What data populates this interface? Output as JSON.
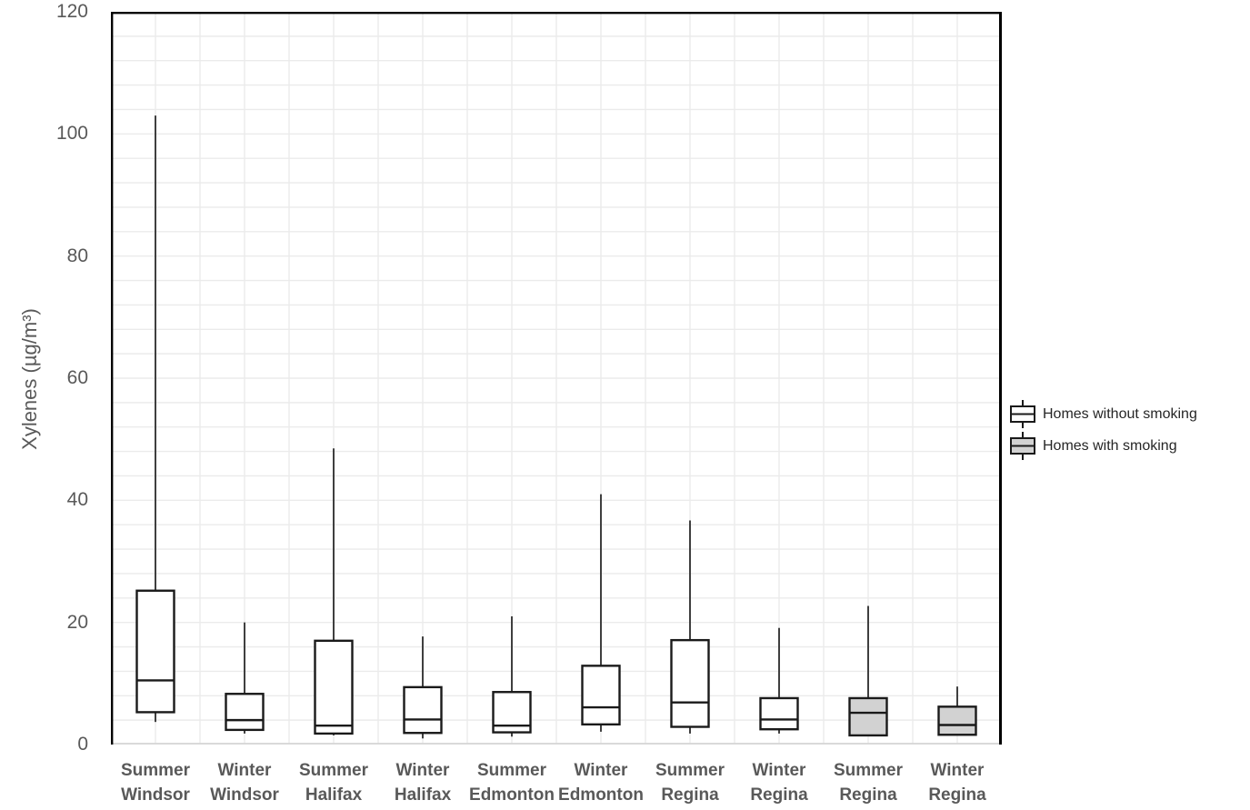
{
  "colors": {
    "background": "#ffffff",
    "no_smoking_fill": "#ffffff",
    "smoking_fill": "#d2d2d2",
    "box_border": "#1a1a1a",
    "whisker": "#3f3f3f",
    "gridline": "#ebebeb",
    "frame": "#000000",
    "baseline": "#d9d9d9",
    "axis_label_text": "#595959",
    "legend_text": "#262626"
  },
  "legend": {
    "items": [
      {
        "label": "Homes without smoking",
        "group": "without"
      },
      {
        "label": "Homes with smoking",
        "group": "with"
      }
    ]
  },
  "chart_data": {
    "type": "boxplot",
    "title": "",
    "xlabel": "",
    "ylabel": "Xylenes (µg/m³)",
    "ylim": [
      0,
      120
    ],
    "y_ticks": [
      0,
      20,
      40,
      60,
      80,
      100,
      120
    ],
    "y_minor_grid_step": 4,
    "x_minor_grid_per_category": 2,
    "grid": true,
    "legend_position": "right",
    "categories": [
      {
        "label_line1": "Summer",
        "label_line2": "Windsor",
        "group": "without",
        "min": 3.7,
        "q1": 5.3,
        "median": 10.5,
        "q3": 25.2,
        "max": 103.0
      },
      {
        "label_line1": "Winter",
        "label_line2": "Windsor",
        "group": "without",
        "min": 1.8,
        "q1": 2.4,
        "median": 4.0,
        "q3": 8.3,
        "max": 20.0
      },
      {
        "label_line1": "Summer",
        "label_line2": "Halifax",
        "group": "without",
        "min": 1.5,
        "q1": 1.8,
        "median": 3.1,
        "q3": 17.0,
        "max": 48.5
      },
      {
        "label_line1": "Winter",
        "label_line2": "Halifax",
        "group": "without",
        "min": 1.0,
        "q1": 1.9,
        "median": 4.1,
        "q3": 9.4,
        "max": 17.7
      },
      {
        "label_line1": "Summer",
        "label_line2": "Edmonton",
        "group": "without",
        "min": 1.3,
        "q1": 2.0,
        "median": 3.1,
        "q3": 8.6,
        "max": 21.0
      },
      {
        "label_line1": "Winter",
        "label_line2": "Edmonton",
        "group": "without",
        "min": 2.1,
        "q1": 3.3,
        "median": 6.1,
        "q3": 12.9,
        "max": 41.0
      },
      {
        "label_line1": "Summer",
        "label_line2": "Regina",
        "group": "without",
        "min": 1.8,
        "q1": 2.9,
        "median": 6.9,
        "q3": 17.1,
        "max": 36.7
      },
      {
        "label_line1": "Winter",
        "label_line2": "Regina",
        "group": "without",
        "min": 1.8,
        "q1": 2.5,
        "median": 4.1,
        "q3": 7.6,
        "max": 19.1
      },
      {
        "label_line1": "Summer",
        "label_line2": "Regina",
        "group": "with",
        "min": 1.5,
        "q1": 1.5,
        "median": 5.2,
        "q3": 7.6,
        "max": 22.7
      },
      {
        "label_line1": "Winter",
        "label_line2": "Regina",
        "group": "with",
        "min": 1.6,
        "q1": 1.6,
        "median": 3.2,
        "q3": 6.2,
        "max": 9.5
      }
    ]
  }
}
